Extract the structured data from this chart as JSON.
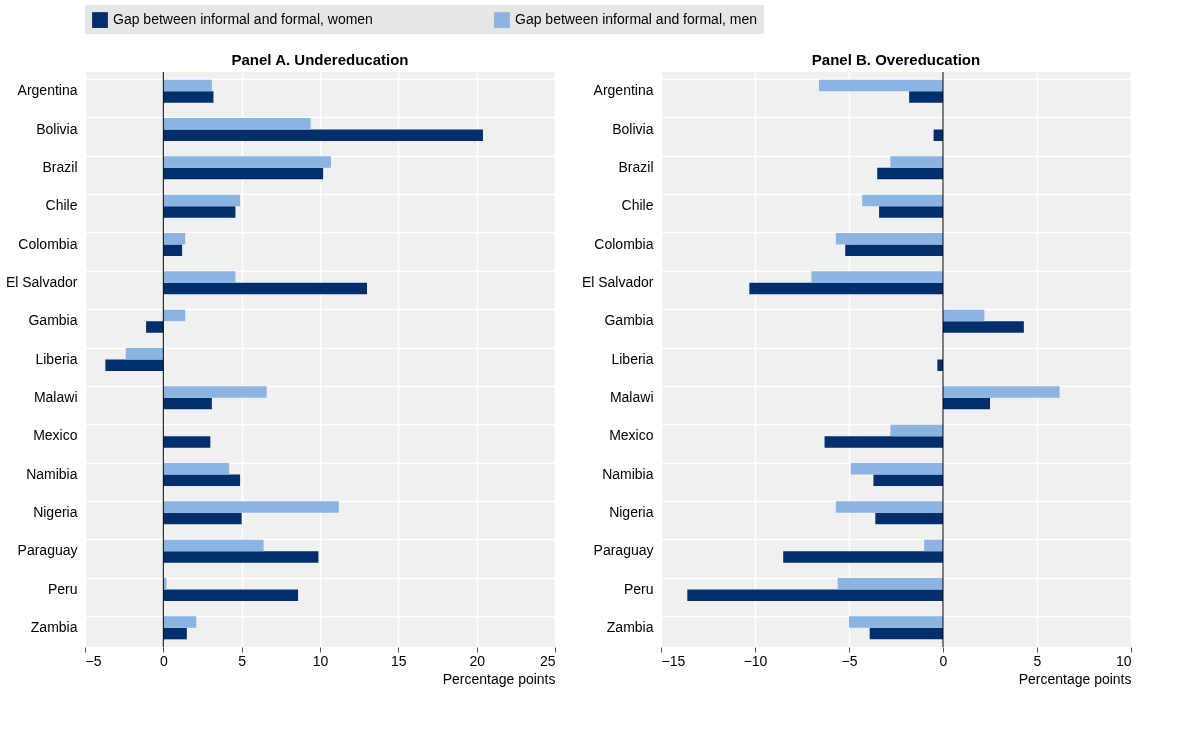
{
  "chart_data": [
    {
      "type": "bar",
      "orientation": "horizontal",
      "title": "Panel A. Undereducation",
      "xlabel": "Percentage points",
      "legend": "top",
      "grid": true,
      "categories": [
        "Argentina",
        "Bolivia",
        "Brazil",
        "Chile",
        "Colombia",
        "El Salvador",
        "Gambia",
        "Liberia",
        "Malawi",
        "Mexico",
        "Namibia",
        "Nigeria",
        "Paraguay",
        "Peru",
        "Zambia"
      ],
      "series": [
        {
          "name": "Gap between informal and formal, women",
          "color": "#002f6c",
          "values": [
            3.2,
            20.4,
            10.2,
            4.6,
            1.2,
            13.0,
            -1.1,
            -3.7,
            3.1,
            3.0,
            4.9,
            5.0,
            9.9,
            8.6,
            1.5
          ]
        },
        {
          "name": "Gap between informal and formal, men",
          "color": "#8cb4e3",
          "values": [
            3.1,
            9.4,
            10.7,
            4.9,
            1.4,
            4.6,
            1.4,
            -2.4,
            6.6,
            null,
            4.2,
            11.2,
            6.4,
            0.2,
            2.1
          ]
        }
      ],
      "xlim": [
        -5,
        25
      ],
      "xticks": [
        -5,
        0,
        5,
        10,
        15,
        20,
        25
      ]
    },
    {
      "type": "bar",
      "orientation": "horizontal",
      "title": "Panel B. Overeducation",
      "xlabel": "Percentage points",
      "legend": "top",
      "grid": true,
      "categories": [
        "Argentina",
        "Bolivia",
        "Brazil",
        "Chile",
        "Colombia",
        "El Salvador",
        "Gambia",
        "Liberia",
        "Malawi",
        "Mexico",
        "Namibia",
        "Nigeria",
        "Paraguay",
        "Peru",
        "Zambia"
      ],
      "series": [
        {
          "name": "Gap between informal and formal, women",
          "color": "#002f6c",
          "values": [
            -1.8,
            -0.5,
            -3.5,
            -3.4,
            -5.2,
            -10.3,
            4.3,
            -0.3,
            2.5,
            -6.3,
            -3.7,
            -3.6,
            -8.5,
            -13.6,
            -3.9
          ]
        },
        {
          "name": "Gap between informal and formal, men",
          "color": "#8cb4e3",
          "values": [
            -6.6,
            null,
            -2.8,
            -4.3,
            -5.7,
            -7.0,
            2.2,
            null,
            6.2,
            -2.8,
            -4.9,
            -5.7,
            -1.0,
            -5.6,
            -5.0
          ]
        }
      ],
      "xlim": [
        -15,
        10
      ],
      "xticks": [
        -15,
        -10,
        -5,
        0,
        5,
        10
      ]
    }
  ]
}
